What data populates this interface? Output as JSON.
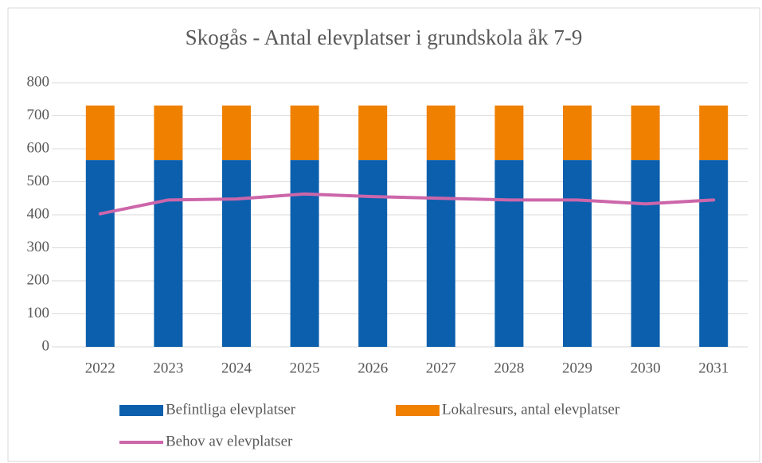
{
  "chart_data": {
    "type": "bar",
    "stacked": true,
    "title": "Skogås - Antal elevplatser i grundskola åk 7-9",
    "categories": [
      "2022",
      "2023",
      "2024",
      "2025",
      "2026",
      "2027",
      "2028",
      "2029",
      "2030",
      "2031"
    ],
    "series": [
      {
        "name": "Befintliga elevplatser",
        "type": "bar",
        "color": "#0b5fad",
        "values": [
          566,
          566,
          566,
          566,
          566,
          566,
          566,
          566,
          566,
          566
        ]
      },
      {
        "name": "Lokalresurs, antal elevplatser",
        "type": "bar",
        "color": "#f08000",
        "values": [
          165,
          165,
          165,
          165,
          165,
          165,
          165,
          165,
          165,
          165
        ]
      },
      {
        "name": "Behov av elevplatser",
        "type": "line",
        "color": "#cc66aa",
        "values": [
          403,
          445,
          448,
          463,
          455,
          450,
          445,
          445,
          433,
          445
        ]
      }
    ],
    "ylim": [
      0,
      800
    ],
    "yticks": [
      0,
      100,
      200,
      300,
      400,
      500,
      600,
      700,
      800
    ],
    "grid": true
  }
}
